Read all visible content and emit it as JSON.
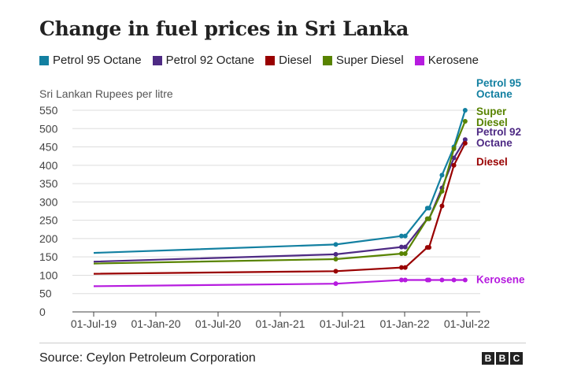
{
  "title": "Change in fuel prices in Sri Lanka",
  "source": "Source: Ceylon Petroleum Corporation",
  "logo": [
    "B",
    "B",
    "C"
  ],
  "chart_data": {
    "type": "line",
    "ylabel": "Sri Lankan Rupees per litre",
    "ylim": [
      0,
      550
    ],
    "yticks": [
      0,
      50,
      100,
      150,
      200,
      250,
      300,
      350,
      400,
      450,
      500,
      550
    ],
    "xticks": [
      "01-Jul-19",
      "01-Jan-20",
      "01-Jul-20",
      "01-Jan-21",
      "01-Jul-21",
      "01-Jan-22",
      "01-Jul-22"
    ],
    "grid": "horizontal",
    "legend_position": "top",
    "series": [
      {
        "name": "Petrol 95 Octane",
        "end_label": [
          "Petrol 95",
          "Octane"
        ],
        "color": "#1380a1",
        "points": [
          [
            "2019-07-01",
            161
          ],
          [
            "2021-06-11",
            184
          ],
          [
            "2021-12-21",
            207
          ],
          [
            "2022-01-01",
            207
          ],
          [
            "2022-03-07",
            283
          ],
          [
            "2022-03-12",
            283
          ],
          [
            "2022-04-19",
            373
          ],
          [
            "2022-05-24",
            450
          ],
          [
            "2022-06-26",
            550
          ]
        ]
      },
      {
        "name": "Petrol 92 Octane",
        "end_label": [
          "Petrol 92",
          "Octane"
        ],
        "color": "#4e2a84",
        "points": [
          [
            "2019-07-01",
            137
          ],
          [
            "2021-06-11",
            157
          ],
          [
            "2021-12-21",
            177
          ],
          [
            "2022-01-01",
            177
          ],
          [
            "2022-03-07",
            254
          ],
          [
            "2022-03-12",
            254
          ],
          [
            "2022-04-19",
            338
          ],
          [
            "2022-05-24",
            420
          ],
          [
            "2022-06-26",
            470
          ]
        ]
      },
      {
        "name": "Diesel",
        "end_label": [
          "Diesel"
        ],
        "color": "#990000",
        "points": [
          [
            "2019-07-01",
            104
          ],
          [
            "2021-06-11",
            111
          ],
          [
            "2021-12-21",
            121
          ],
          [
            "2022-01-01",
            121
          ],
          [
            "2022-03-07",
            176
          ],
          [
            "2022-03-12",
            176
          ],
          [
            "2022-04-19",
            289
          ],
          [
            "2022-05-24",
            400
          ],
          [
            "2022-06-26",
            460
          ]
        ]
      },
      {
        "name": "Super Diesel",
        "end_label": [
          "Super",
          "Diesel"
        ],
        "color": "#588300",
        "points": [
          [
            "2019-07-01",
            132
          ],
          [
            "2021-06-11",
            144
          ],
          [
            "2021-12-21",
            159
          ],
          [
            "2022-01-01",
            159
          ],
          [
            "2022-03-07",
            254
          ],
          [
            "2022-03-12",
            254
          ],
          [
            "2022-04-19",
            329
          ],
          [
            "2022-05-24",
            445
          ],
          [
            "2022-06-26",
            520
          ]
        ]
      },
      {
        "name": "Kerosene",
        "end_label": [
          "Kerosene"
        ],
        "color": "#b61bdf",
        "points": [
          [
            "2019-07-01",
            70
          ],
          [
            "2021-06-11",
            77
          ],
          [
            "2021-12-21",
            87
          ],
          [
            "2022-01-01",
            87
          ],
          [
            "2022-03-07",
            87
          ],
          [
            "2022-03-12",
            87
          ],
          [
            "2022-04-19",
            87
          ],
          [
            "2022-05-24",
            87
          ],
          [
            "2022-06-26",
            87
          ]
        ]
      }
    ]
  }
}
